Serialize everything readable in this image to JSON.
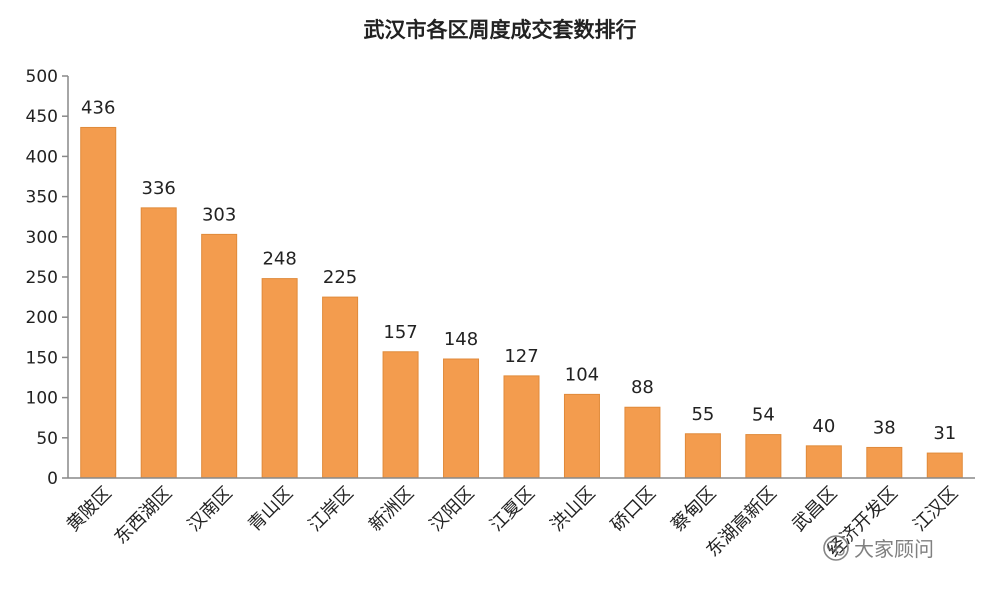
{
  "chart_data": {
    "type": "bar",
    "title": "武汉市各区周度成交套数排行",
    "categories": [
      "黄陂区",
      "东西湖区",
      "汉南区",
      "青山区",
      "江岸区",
      "新洲区",
      "汉阳区",
      "江夏区",
      "洪山区",
      "硚口区",
      "蔡甸区",
      "东湖高新区",
      "武昌区",
      "经济开发区",
      "江汉区"
    ],
    "values": [
      436,
      336,
      303,
      248,
      225,
      157,
      148,
      127,
      104,
      88,
      55,
      54,
      40,
      38,
      31
    ],
    "xlabel": "",
    "ylabel": "",
    "ylim": [
      0,
      500
    ],
    "yticks": [
      "0",
      "50",
      "100",
      "150",
      "200",
      "250",
      "300",
      "350",
      "400",
      "450",
      "500"
    ],
    "grid": false,
    "bar_color": "#F39C4E",
    "bar_edge_color": "#E08A3A"
  },
  "watermark": {
    "text": "大家顾问",
    "icon": "wechat-icon"
  }
}
